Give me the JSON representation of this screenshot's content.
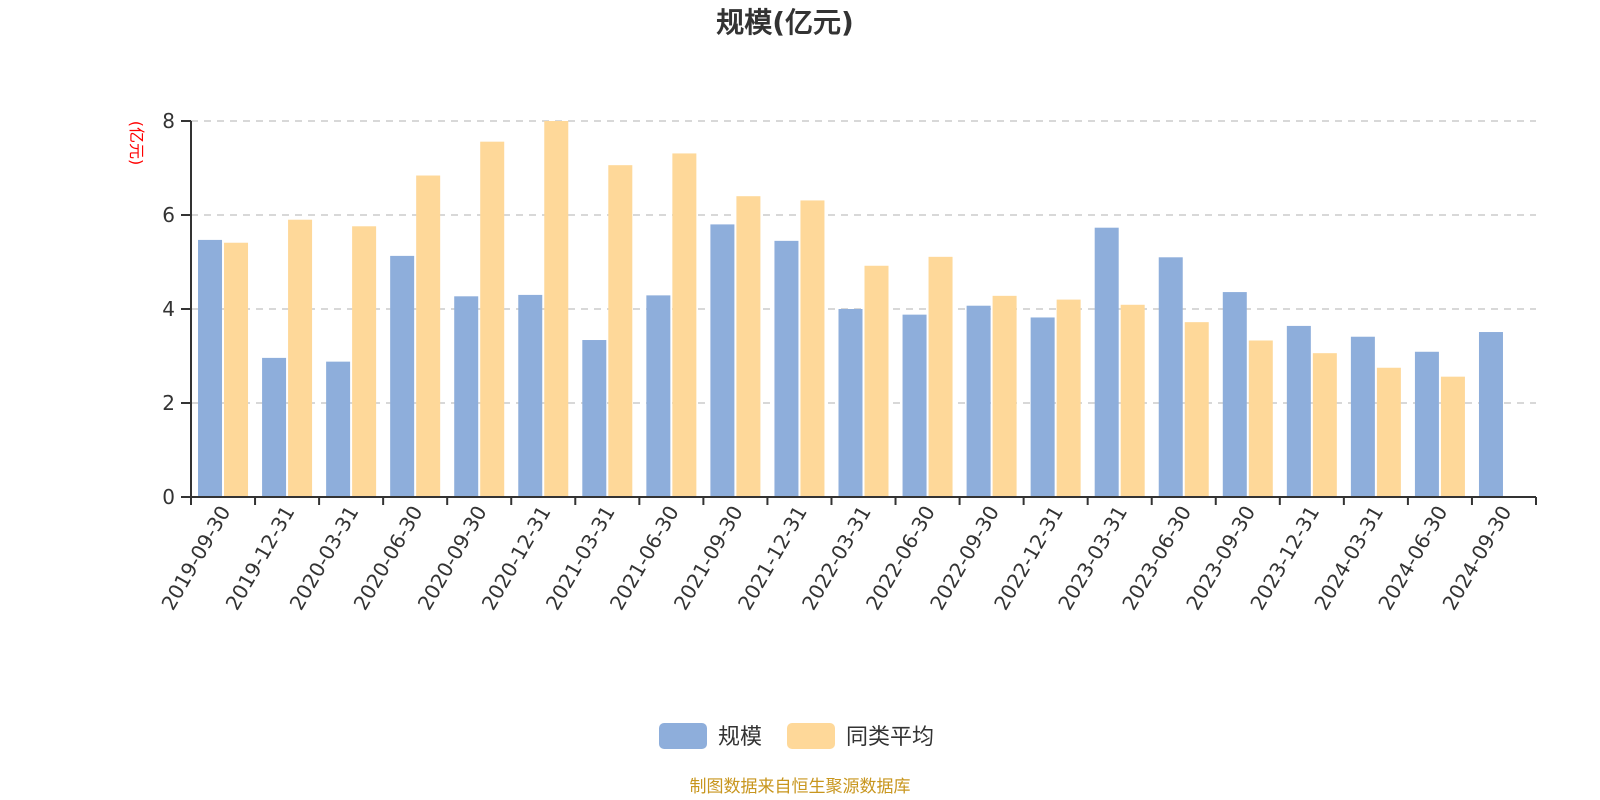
{
  "colors": {
    "series_0": "#8eaedb",
    "series_1": "#fed899",
    "ylabel": "#ff0000",
    "source": "#c8961e",
    "grid": "#cccccc",
    "axis": "#333333"
  },
  "source_text": "制图数据来自恒生聚源数据库",
  "chart_data": {
    "type": "bar",
    "title": "规模(亿元)",
    "ylabel": "(亿元)",
    "xlabel": "",
    "ylim": [
      0,
      8
    ],
    "yticks": [
      0,
      2,
      4,
      6,
      8
    ],
    "grid": true,
    "legend_position": "bottom-center",
    "categories": [
      "2019-09-30",
      "2019-12-31",
      "2020-03-31",
      "2020-06-30",
      "2020-09-30",
      "2020-12-31",
      "2021-03-31",
      "2021-06-30",
      "2021-09-30",
      "2021-12-31",
      "2022-03-31",
      "2022-06-30",
      "2022-09-30",
      "2022-12-31",
      "2023-03-31",
      "2023-06-30",
      "2023-09-30",
      "2023-12-31",
      "2024-03-31",
      "2024-06-30",
      "2024-09-30"
    ],
    "series": [
      {
        "name": "规模",
        "values": [
          5.47,
          2.96,
          2.88,
          5.13,
          4.27,
          4.3,
          3.34,
          4.29,
          5.8,
          5.45,
          4.0,
          3.88,
          4.07,
          3.82,
          5.73,
          5.1,
          4.36,
          3.64,
          3.41,
          3.09,
          3.51
        ]
      },
      {
        "name": "同类平均",
        "values": [
          5.41,
          5.9,
          5.76,
          6.84,
          7.56,
          8.0,
          7.06,
          7.31,
          6.4,
          6.31,
          4.92,
          5.11,
          4.28,
          4.2,
          4.09,
          3.72,
          3.33,
          3.06,
          2.75,
          2.56,
          null
        ]
      }
    ]
  }
}
